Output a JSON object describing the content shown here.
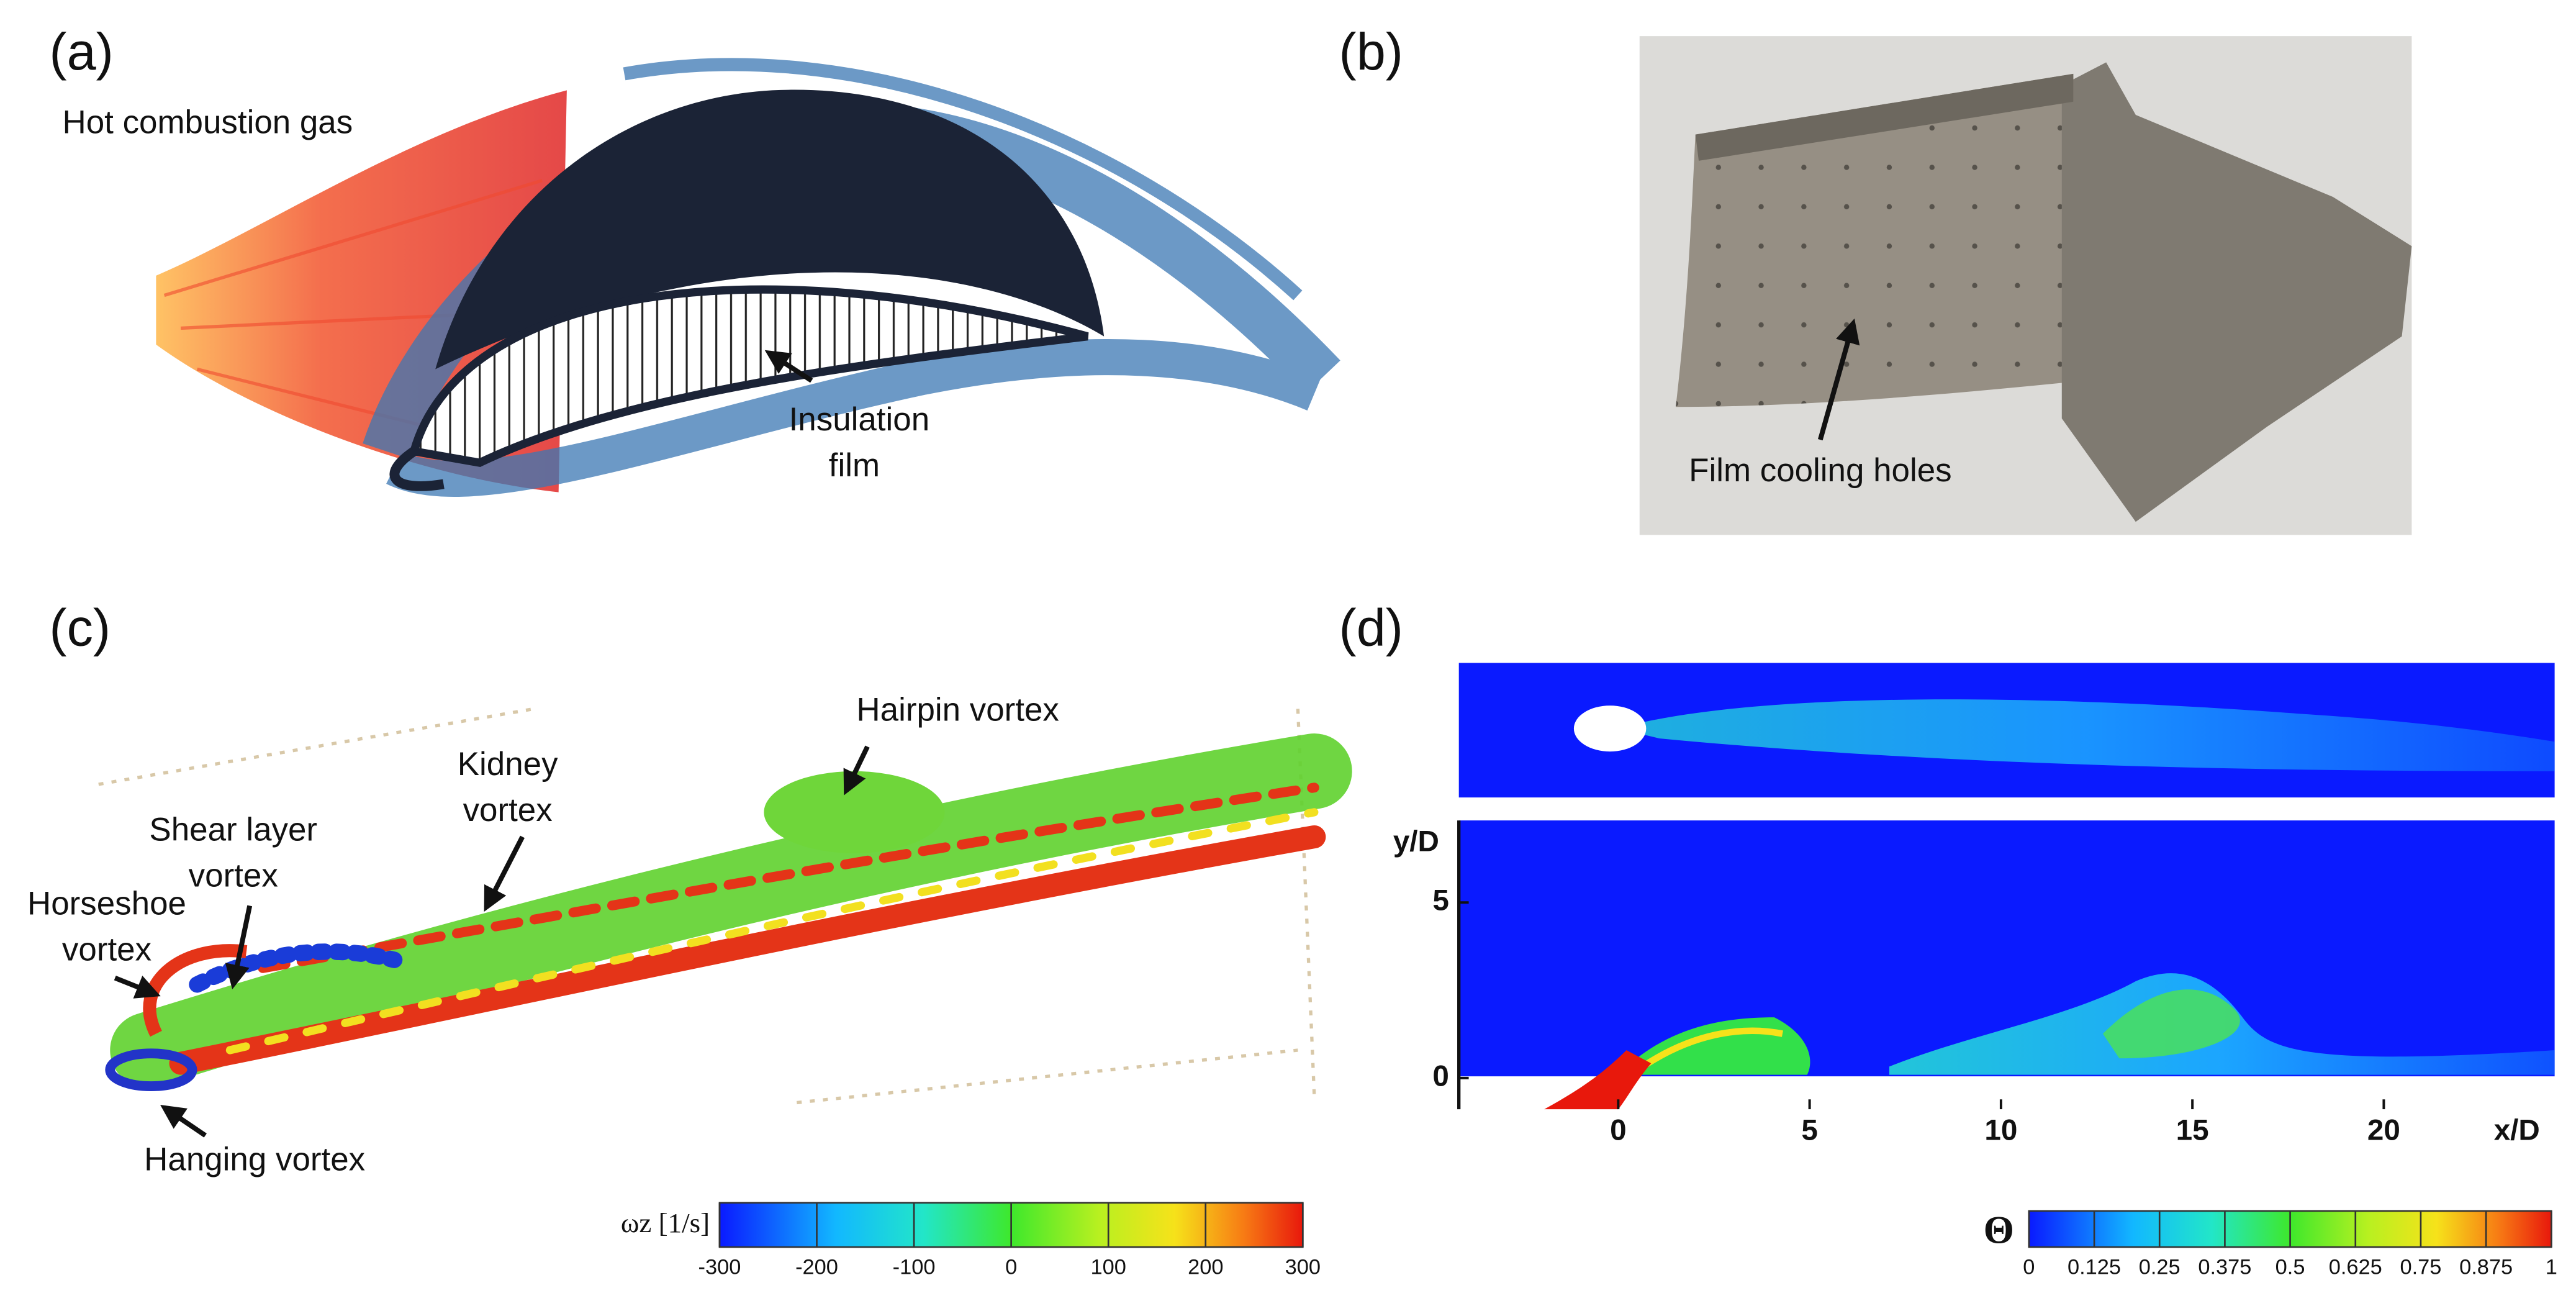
{
  "panels": {
    "a": {
      "label": "(a)",
      "annotations": [
        "Hot combustion gas",
        "Insulation",
        "film"
      ]
    },
    "b": {
      "label": "(b)",
      "annotations": [
        "Film cooling holes"
      ]
    },
    "c": {
      "label": "(c)",
      "annotations": [
        "Hairpin vortex",
        "Kidney",
        "vortex",
        "Shear layer",
        "vortex",
        "Horseshoe",
        "vortex",
        "Hanging vortex"
      ],
      "colorbar": {
        "label": "ωz [1/s]",
        "ticks": [
          -300,
          -200,
          -100,
          0,
          100,
          200,
          300
        ]
      }
    },
    "d": {
      "label": "(d)",
      "x_label": "x/D",
      "y_label": "y/D",
      "xticks": [
        0,
        5,
        10,
        15,
        20
      ],
      "yticks": [
        0,
        5
      ],
      "colorbar": {
        "label": "Θ",
        "ticks": [
          0,
          0.125,
          0.25,
          0.375,
          0.5,
          0.625,
          0.75,
          0.875,
          1
        ]
      }
    }
  }
}
